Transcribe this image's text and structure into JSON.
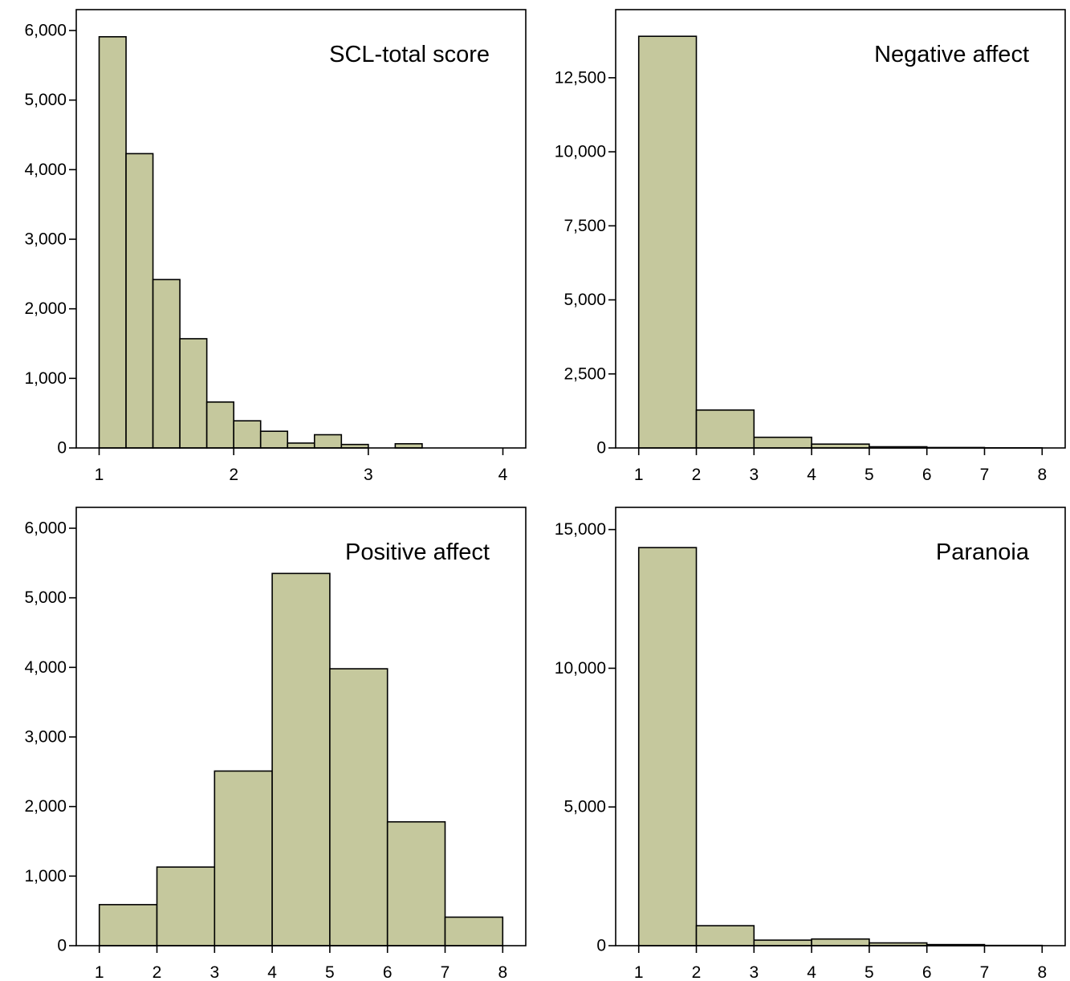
{
  "colors": {
    "bar_fill": "#c5c89d",
    "bar_stroke": "#000000",
    "background": "#ffffff"
  },
  "chart_data": [
    {
      "type": "bar",
      "subtype": "histogram",
      "title": "SCL-total score",
      "xlabel": "",
      "ylabel": "",
      "xlim": [
        0.83,
        4.17
      ],
      "ylim": [
        0,
        6300
      ],
      "xticks": [
        1,
        2,
        3,
        4
      ],
      "xtick_labels": [
        "1",
        "2",
        "3",
        "4"
      ],
      "yticks": [
        0,
        1000,
        2000,
        3000,
        4000,
        5000,
        6000
      ],
      "ytick_labels": [
        "0",
        "1,000",
        "2,000",
        "3,000",
        "4,000",
        "5,000",
        "6,000"
      ],
      "bin_edges": [
        1.0,
        1.2,
        1.4,
        1.6,
        1.8,
        2.0,
        2.2,
        2.4,
        2.6,
        2.8,
        3.0,
        3.2,
        3.4,
        3.6,
        3.8,
        4.0
      ],
      "values": [
        5910,
        4230,
        2420,
        1570,
        660,
        390,
        240,
        70,
        190,
        50,
        0,
        60,
        0,
        0,
        0
      ],
      "grid": false,
      "legend": "none"
    },
    {
      "type": "bar",
      "subtype": "histogram",
      "title": "Negative affect",
      "xlabel": "",
      "ylabel": "",
      "xlim": [
        0.6,
        8.4
      ],
      "ylim": [
        0,
        14800
      ],
      "xticks": [
        1,
        2,
        3,
        4,
        5,
        6,
        7,
        8
      ],
      "xtick_labels": [
        "1",
        "2",
        "3",
        "4",
        "5",
        "6",
        "7",
        "8"
      ],
      "yticks": [
        0,
        2500,
        5000,
        7500,
        10000,
        12500
      ],
      "ytick_labels": [
        "0",
        "2,500",
        "5,000",
        "7,500",
        "10,000",
        "12,500"
      ],
      "bin_edges": [
        1,
        2,
        3,
        4,
        5,
        6,
        7,
        8
      ],
      "values": [
        13900,
        1280,
        360,
        130,
        40,
        15,
        5
      ],
      "grid": false,
      "legend": "none"
    },
    {
      "type": "bar",
      "subtype": "histogram",
      "title": "Positive affect",
      "xlabel": "",
      "ylabel": "",
      "xlim": [
        0.6,
        8.4
      ],
      "ylim": [
        0,
        6300
      ],
      "xticks": [
        1,
        2,
        3,
        4,
        5,
        6,
        7,
        8
      ],
      "xtick_labels": [
        "1",
        "2",
        "3",
        "4",
        "5",
        "6",
        "7",
        "8"
      ],
      "yticks": [
        0,
        1000,
        2000,
        3000,
        4000,
        5000,
        6000
      ],
      "ytick_labels": [
        "0",
        "1,000",
        "2,000",
        "3,000",
        "4,000",
        "5,000",
        "6,000"
      ],
      "bin_edges": [
        1,
        2,
        3,
        4,
        5,
        6,
        7,
        8
      ],
      "values": [
        590,
        1130,
        2510,
        5350,
        3980,
        1780,
        410
      ],
      "grid": false,
      "legend": "none"
    },
    {
      "type": "bar",
      "subtype": "histogram",
      "title": "Paranoia",
      "xlabel": "",
      "ylabel": "",
      "xlim": [
        0.6,
        8.4
      ],
      "ylim": [
        0,
        15800
      ],
      "xticks": [
        1,
        2,
        3,
        4,
        5,
        6,
        7,
        8
      ],
      "xtick_labels": [
        "1",
        "2",
        "3",
        "4",
        "5",
        "6",
        "7",
        "8"
      ],
      "yticks": [
        0,
        5000,
        10000,
        15000
      ],
      "ytick_labels": [
        "0",
        "5,000",
        "10,000",
        "15,000"
      ],
      "bin_edges": [
        1,
        2,
        3,
        4,
        5,
        6,
        7,
        8
      ],
      "values": [
        14350,
        720,
        200,
        240,
        100,
        40,
        10
      ],
      "grid": false,
      "legend": "none"
    }
  ]
}
